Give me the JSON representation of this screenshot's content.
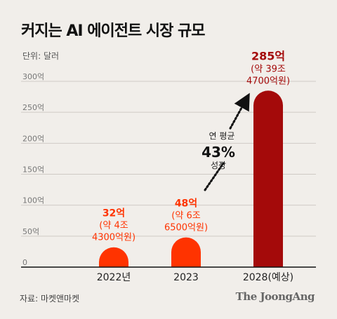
{
  "title": "커지는 AI 에이전트 시장 규모",
  "unit_label": "단위: 달러",
  "source": "자료: 마켓앤마켓",
  "brand": "The JoongAng",
  "colors": {
    "background": "#f1eeea",
    "bar_light": "#ff3300",
    "bar_dark": "#a40a0a",
    "label_light": "#ff3300",
    "label_dark": "#a40a0a",
    "grid": "#cfcac5",
    "baseline": "#111111"
  },
  "chart_data": {
    "type": "bar",
    "categories": [
      "2022년",
      "2023",
      "2028(예상)"
    ],
    "values": [
      32,
      48,
      285
    ],
    "ylim": [
      0,
      300
    ],
    "yticks": [
      0,
      50,
      100,
      150,
      200,
      250,
      300
    ],
    "ytick_labels": [
      "0",
      "50억",
      "100억",
      "150억",
      "200억",
      "250억",
      "300억"
    ],
    "grid": true,
    "value_labels": [
      [
        "32억",
        "(약 4조",
        "4300억원)"
      ],
      [
        "48억",
        "(약 6조",
        "6500억원)"
      ],
      [
        "285억",
        "(약 39조",
        "4700억원)"
      ]
    ],
    "annotation": [
      "연 평균",
      "43%",
      "성장"
    ]
  }
}
